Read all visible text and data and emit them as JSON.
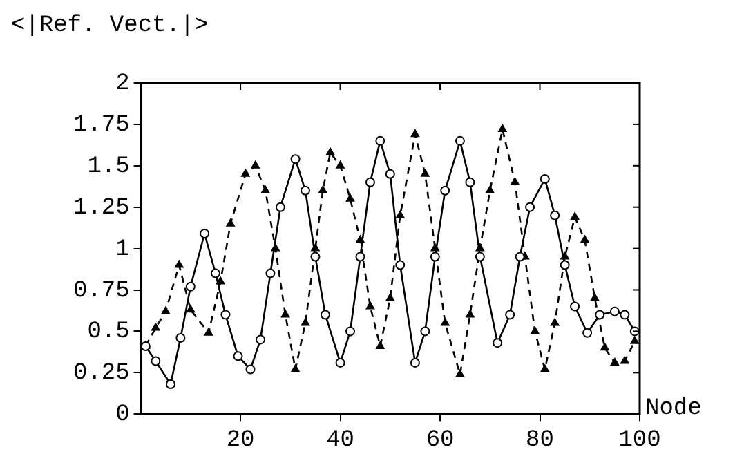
{
  "chart_data": {
    "type": "line",
    "title": "<|Ref. Vect.|>",
    "xlabel": "Node",
    "xlim": [
      0,
      100
    ],
    "xticks": [
      20,
      40,
      60,
      80,
      100
    ],
    "ylim": [
      0,
      2
    ],
    "yticks": [
      0,
      0.25,
      0.5,
      0.75,
      1,
      1.25,
      1.5,
      1.75,
      2
    ],
    "grid": false,
    "legend": false,
    "series": [
      {
        "color": "#000000",
        "marker": "circle",
        "line_style": "solid",
        "x": [
          1,
          3,
          6,
          8,
          10,
          12.8,
          15,
          17,
          19.5,
          22,
          24,
          26,
          28,
          31,
          33,
          35,
          37,
          40,
          42,
          44,
          46,
          48,
          50,
          52,
          55,
          57,
          59,
          61,
          64,
          66,
          68,
          71.5,
          74,
          76,
          78,
          81,
          83,
          85,
          87,
          89.5,
          92,
          95,
          97,
          99
        ],
        "values": [
          0.41,
          0.32,
          0.18,
          0.46,
          0.77,
          1.09,
          0.85,
          0.6,
          0.35,
          0.27,
          0.45,
          0.85,
          1.25,
          1.54,
          1.35,
          0.95,
          0.6,
          0.31,
          0.5,
          0.95,
          1.4,
          1.65,
          1.45,
          0.9,
          0.31,
          0.5,
          0.95,
          1.35,
          1.65,
          1.4,
          0.95,
          0.43,
          0.6,
          0.95,
          1.25,
          1.42,
          1.2,
          0.9,
          0.65,
          0.49,
          0.6,
          0.62,
          0.6,
          0.5
        ]
      },
      {
        "color": "#000000",
        "marker": "triangle",
        "line_style": "dashed",
        "x": [
          1,
          3,
          5,
          7.7,
          10,
          13.6,
          16,
          18,
          21,
          23,
          25,
          27,
          29,
          31,
          33,
          35,
          36.5,
          38,
          40,
          42,
          44,
          46,
          48,
          50,
          52,
          55,
          57,
          59,
          61,
          64,
          66,
          68,
          70,
          72.5,
          75,
          77,
          79,
          81,
          83,
          85,
          87,
          89,
          91,
          93,
          95,
          97,
          99
        ],
        "values": [
          0.41,
          0.52,
          0.62,
          0.9,
          0.63,
          0.49,
          0.8,
          1.15,
          1.45,
          1.5,
          1.35,
          1.0,
          0.6,
          0.27,
          0.55,
          1.0,
          1.35,
          1.58,
          1.5,
          1.3,
          1.05,
          0.65,
          0.41,
          0.7,
          1.2,
          1.69,
          1.45,
          1.0,
          0.55,
          0.24,
          0.6,
          1.0,
          1.35,
          1.72,
          1.4,
          0.95,
          0.5,
          0.27,
          0.55,
          0.95,
          1.19,
          1.05,
          0.7,
          0.4,
          0.31,
          0.32,
          0.44
        ]
      }
    ]
  }
}
